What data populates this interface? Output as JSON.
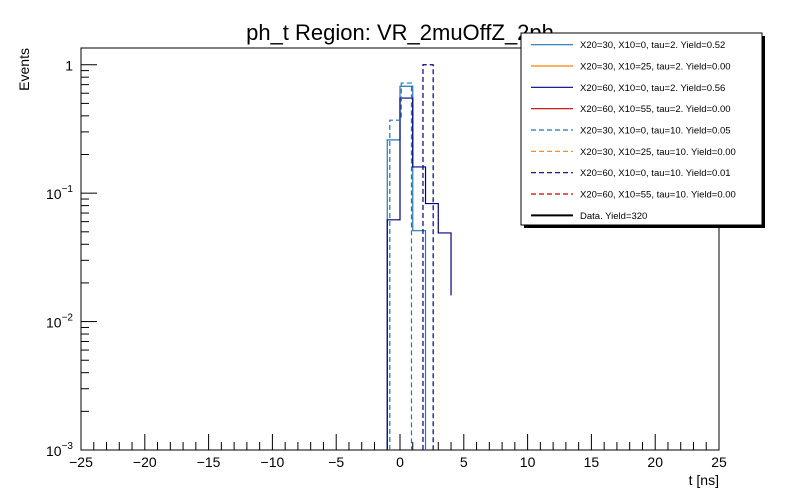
{
  "chart_data": {
    "type": "histogram-step",
    "title": "ph_t Region: VR_2muOffZ_2ph",
    "xlabel": "t [ns]",
    "ylabel": "Events",
    "xlim": [
      -25,
      25
    ],
    "ylim": [
      0.001,
      1.35
    ],
    "yscale": "log",
    "x_major_ticks": [
      -25,
      -20,
      -15,
      -10,
      -5,
      0,
      5,
      10,
      15,
      20,
      25
    ],
    "x_tick_labels": [
      "−25",
      "−20",
      "−15",
      "−10",
      "−5",
      "0",
      "5",
      "10",
      "15",
      "20",
      "25"
    ],
    "y_major_ticks": [
      {
        "value": 1,
        "mantissa": "1",
        "exp": ""
      },
      {
        "value": 0.1,
        "mantissa": "10",
        "exp": "−1"
      },
      {
        "value": 0.01,
        "mantissa": "10",
        "exp": "−2"
      },
      {
        "value": 0.001,
        "mantissa": "10",
        "exp": "−3"
      }
    ],
    "series": [
      {
        "name": "X20=30, X10=0, tau=2. Yield=0.52",
        "color": "#1f77b4",
        "dash": "solid",
        "edges": [
          -1,
          0,
          1,
          2
        ],
        "values": [
          0.26,
          0.68,
          0.051
        ]
      },
      {
        "name": "X20=30, X10=25, tau=2. Yield=0.00",
        "color": "#ff7f0e",
        "dash": "solid",
        "edges": [],
        "values": []
      },
      {
        "name": "X20=60, X10=0, tau=2. Yield=0.56",
        "color": "#000080",
        "dash": "solid",
        "edges": [
          -1,
          0,
          1,
          2,
          3,
          4
        ],
        "values": [
          0.062,
          0.55,
          0.16,
          0.083,
          0.049,
          0.016
        ]
      },
      {
        "name": "X20=60, X10=55, tau=2. Yield=0.00",
        "color": "#cc0000",
        "dash": "solid",
        "edges": [],
        "values": []
      },
      {
        "name": "X20=30, X10=0, tau=10. Yield=0.05",
        "color": "#1f77b4",
        "dash": "dashed",
        "edges": [
          -0.8,
          0.1,
          0.9
        ],
        "values": [
          0.37,
          0.72
        ]
      },
      {
        "name": "X20=30, X10=25, tau=10. Yield=0.00",
        "color": "#ff7f0e",
        "dash": "dashed",
        "edges": [],
        "values": []
      },
      {
        "name": "X20=60, X10=0, tau=10. Yield=0.01",
        "color": "#000080",
        "dash": "dashed",
        "edges": [
          1.8,
          2.6
        ],
        "values": [
          1.0
        ]
      },
      {
        "name": "X20=60, X10=55, tau=10. Yield=0.00",
        "color": "#cc0000",
        "dash": "dashed",
        "edges": [],
        "values": []
      },
      {
        "name": "Data. Yield=320",
        "color": "#000000",
        "dash": "solid",
        "width": 2,
        "edges": [],
        "values": []
      }
    ]
  }
}
